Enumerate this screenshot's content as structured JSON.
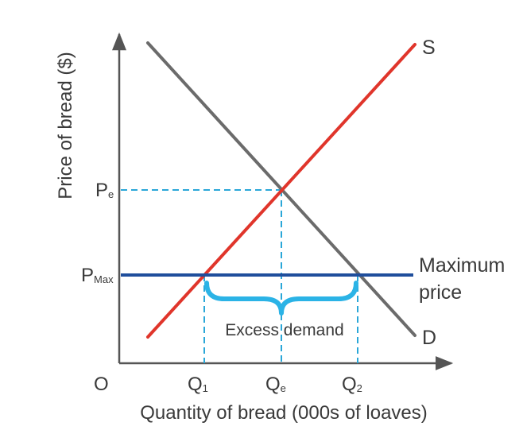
{
  "diagram": {
    "type": "supply-demand-maximum-price",
    "y_axis_label": "Price of bread ($)",
    "x_axis_label": "Quantity of bread (000s of loaves)",
    "origin_label": "O",
    "price_labels": {
      "equilibrium": {
        "main": "P",
        "sub": "e"
      },
      "maximum": {
        "main": "P",
        "sub": "Max"
      }
    },
    "quantity_labels": {
      "q1": {
        "main": "Q",
        "sub": "1"
      },
      "qe": {
        "main": "Q",
        "sub": "e"
      },
      "q2": {
        "main": "Q",
        "sub": "2"
      }
    },
    "curves": {
      "supply": {
        "label": "S",
        "color": "#e0352b"
      },
      "demand": {
        "label": "D",
        "color": "#6b6b6b"
      },
      "max_price": {
        "label_line1": "Maximum",
        "label_line2": "price",
        "color": "#1f4e9c"
      }
    },
    "annotation": {
      "text": "Excess demand",
      "brace_color": "#2bb3e6"
    },
    "guide_color": "#2aa7d8",
    "axis_color": "#555555"
  }
}
